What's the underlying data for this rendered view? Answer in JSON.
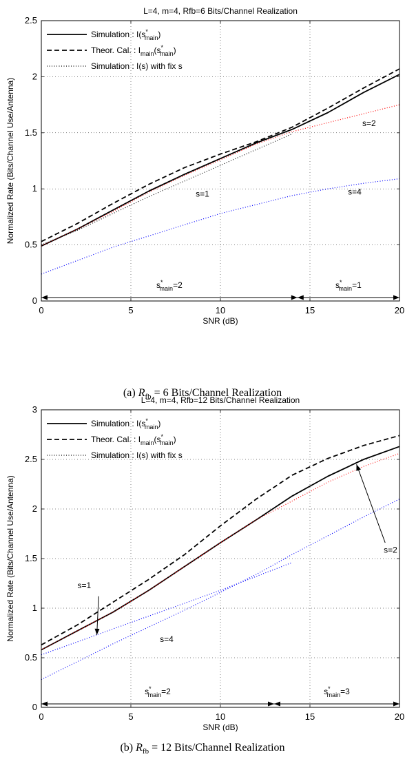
{
  "chart_data": [
    {
      "type": "line",
      "title": "L=4, m=4, Rfb=6 Bits/Channel Realization",
      "xlabel": "SNR (dB)",
      "ylabel": "Normalized Rate (Bits/Channel Use/Antenna)",
      "xlim": [
        0,
        20
      ],
      "ylim": [
        0,
        2.5
      ],
      "xticks": [
        "0",
        "5",
        "10",
        "15",
        "20"
      ],
      "yticks": [
        "0",
        "0.5",
        "1",
        "1.5",
        "2",
        "2.5"
      ],
      "grid": true,
      "legend_position": "top-left",
      "legend": [
        {
          "style": "solid",
          "pre": "Simulation : I(s",
          "sup": "*",
          "sub": "main",
          "post": ")"
        },
        {
          "style": "dashed",
          "pre": "Theor. Cal. : I",
          "sub0": "main",
          "mid": "(s",
          "sup": "*",
          "sub": "main",
          "post": ")"
        },
        {
          "style": "dotted",
          "text": "Simulation : I(s) with fix s"
        }
      ],
      "series": [
        {
          "style": "solid",
          "color": "#000000",
          "x": [
            0,
            2,
            4,
            6,
            8,
            10,
            12,
            14,
            16,
            18,
            20
          ],
          "y": [
            0.49,
            0.64,
            0.81,
            0.98,
            1.13,
            1.27,
            1.41,
            1.53,
            1.68,
            1.86,
            2.02
          ]
        },
        {
          "style": "dashed",
          "color": "#000000",
          "x": [
            0,
            2,
            4,
            6,
            8,
            10,
            12,
            14,
            16,
            18,
            20
          ],
          "y": [
            0.53,
            0.69,
            0.87,
            1.04,
            1.19,
            1.31,
            1.42,
            1.55,
            1.72,
            1.9,
            2.07
          ]
        },
        {
          "style": "dotted",
          "color": "#0000ff",
          "x": [
            0,
            2,
            4,
            6,
            8,
            10,
            12,
            14,
            16,
            18,
            20
          ],
          "y": [
            0.24,
            0.36,
            0.48,
            0.58,
            0.68,
            0.78,
            0.86,
            0.94,
            1.0,
            1.05,
            1.09
          ]
        },
        {
          "style": "dotted",
          "color": "#ff0000",
          "x": [
            0,
            2,
            4,
            6,
            8,
            10,
            12,
            14,
            16,
            18,
            20
          ],
          "y": [
            0.49,
            0.64,
            0.8,
            0.97,
            1.12,
            1.26,
            1.4,
            1.51,
            1.59,
            1.67,
            1.75
          ]
        },
        {
          "style": "dotted",
          "color": "#000000",
          "x": [
            0,
            2,
            4,
            6,
            8,
            10,
            12,
            14
          ],
          "y": [
            0.5,
            0.63,
            0.78,
            0.93,
            1.07,
            1.21,
            1.35,
            1.49
          ]
        }
      ],
      "annotations": [
        {
          "text": "s=1",
          "x": 9.0,
          "y": 0.93
        },
        {
          "text": "s=2",
          "x": 18.3,
          "y": 1.56
        },
        {
          "text": "s=4",
          "x": 17.5,
          "y": 0.95
        }
      ],
      "regions": [
        {
          "from": 0,
          "to": 14.3,
          "pre": "s",
          "sup": "*",
          "sub": "main",
          "post": "=2"
        },
        {
          "from": 14.3,
          "to": 20,
          "pre": "s",
          "sup": "*",
          "sub": "main",
          "post": "=1"
        }
      ],
      "caption": {
        "label": "(a)",
        "sym": "R",
        "symsub": "fb",
        "rest": " = 6 Bits/Channel Realization"
      }
    },
    {
      "type": "line",
      "title": "L=4, m=4, Rfb=12 Bits/Channel Realization",
      "xlabel": "SNR (dB)",
      "ylabel": "Normalized Rate (Bits/Channel Use/Antenna)",
      "xlim": [
        0,
        20
      ],
      "ylim": [
        0,
        3
      ],
      "xticks": [
        "0",
        "5",
        "10",
        "15",
        "20"
      ],
      "yticks": [
        "0",
        "0.5",
        "1",
        "1.5",
        "2",
        "2.5",
        "3"
      ],
      "grid": true,
      "legend_position": "top-left",
      "legend": [
        {
          "style": "solid",
          "pre": "Simulation : I(s",
          "sup": "*",
          "sub": "main",
          "post": ")"
        },
        {
          "style": "dashed",
          "pre": "Theor. Cal. : I",
          "sub0": "main",
          "mid": "(s",
          "sup": "*",
          "sub": "main",
          "post": ")"
        },
        {
          "style": "dotted",
          "text": "Simulation : I(s) with fix s"
        }
      ],
      "series": [
        {
          "style": "solid",
          "color": "#000000",
          "x": [
            0,
            2,
            4,
            6,
            8,
            10,
            12,
            14,
            16,
            18,
            20
          ],
          "y": [
            0.58,
            0.77,
            0.96,
            1.18,
            1.42,
            1.66,
            1.89,
            2.13,
            2.33,
            2.5,
            2.63
          ]
        },
        {
          "style": "dashed",
          "color": "#000000",
          "x": [
            0,
            2,
            4,
            6,
            8,
            10,
            12,
            14,
            16,
            18,
            20
          ],
          "y": [
            0.63,
            0.83,
            1.06,
            1.29,
            1.54,
            1.83,
            2.1,
            2.34,
            2.51,
            2.64,
            2.74
          ]
        },
        {
          "style": "dotted",
          "color": "#0000ff",
          "x": [
            0,
            2,
            4,
            6,
            8,
            10,
            12,
            14,
            16,
            18,
            20
          ],
          "y": [
            0.28,
            0.46,
            0.64,
            0.81,
            0.98,
            1.16,
            1.34,
            1.54,
            1.73,
            1.92,
            2.1
          ]
        },
        {
          "style": "dotted",
          "color": "#ff0000",
          "x": [
            0,
            2,
            4,
            6,
            8,
            10,
            12,
            14,
            16,
            18,
            20
          ],
          "y": [
            0.58,
            0.77,
            0.96,
            1.18,
            1.42,
            1.66,
            1.89,
            2.08,
            2.27,
            2.43,
            2.56
          ]
        },
        {
          "style": "dotted",
          "color": "#0000ff",
          "x": [
            0,
            2,
            4,
            6,
            8,
            10,
            12,
            14
          ],
          "y": [
            0.53,
            0.66,
            0.79,
            0.92,
            1.05,
            1.18,
            1.32,
            1.46
          ]
        }
      ],
      "annotations": [
        {
          "text": "s=1",
          "x": 2.4,
          "y": 1.2
        },
        {
          "text": "s=4",
          "x": 7.0,
          "y": 0.66
        },
        {
          "text": "s=2",
          "x": 19.5,
          "y": 1.56
        }
      ],
      "arrows": [
        {
          "from": [
            3.2,
            1.12
          ],
          "to": [
            3.1,
            0.73
          ]
        },
        {
          "from": [
            19.2,
            1.66
          ],
          "to": [
            17.6,
            2.45
          ]
        }
      ],
      "regions": [
        {
          "from": 0,
          "to": 13,
          "pre": "s",
          "sup": "*",
          "sub": "main",
          "post": "=2"
        },
        {
          "from": 13,
          "to": 20,
          "pre": "s",
          "sup": "*",
          "sub": "main",
          "post": "=3"
        }
      ],
      "caption": {
        "label": "(b)",
        "sym": "R",
        "symsub": "fb",
        "rest": " = 12 Bits/Channel Realization"
      }
    }
  ]
}
